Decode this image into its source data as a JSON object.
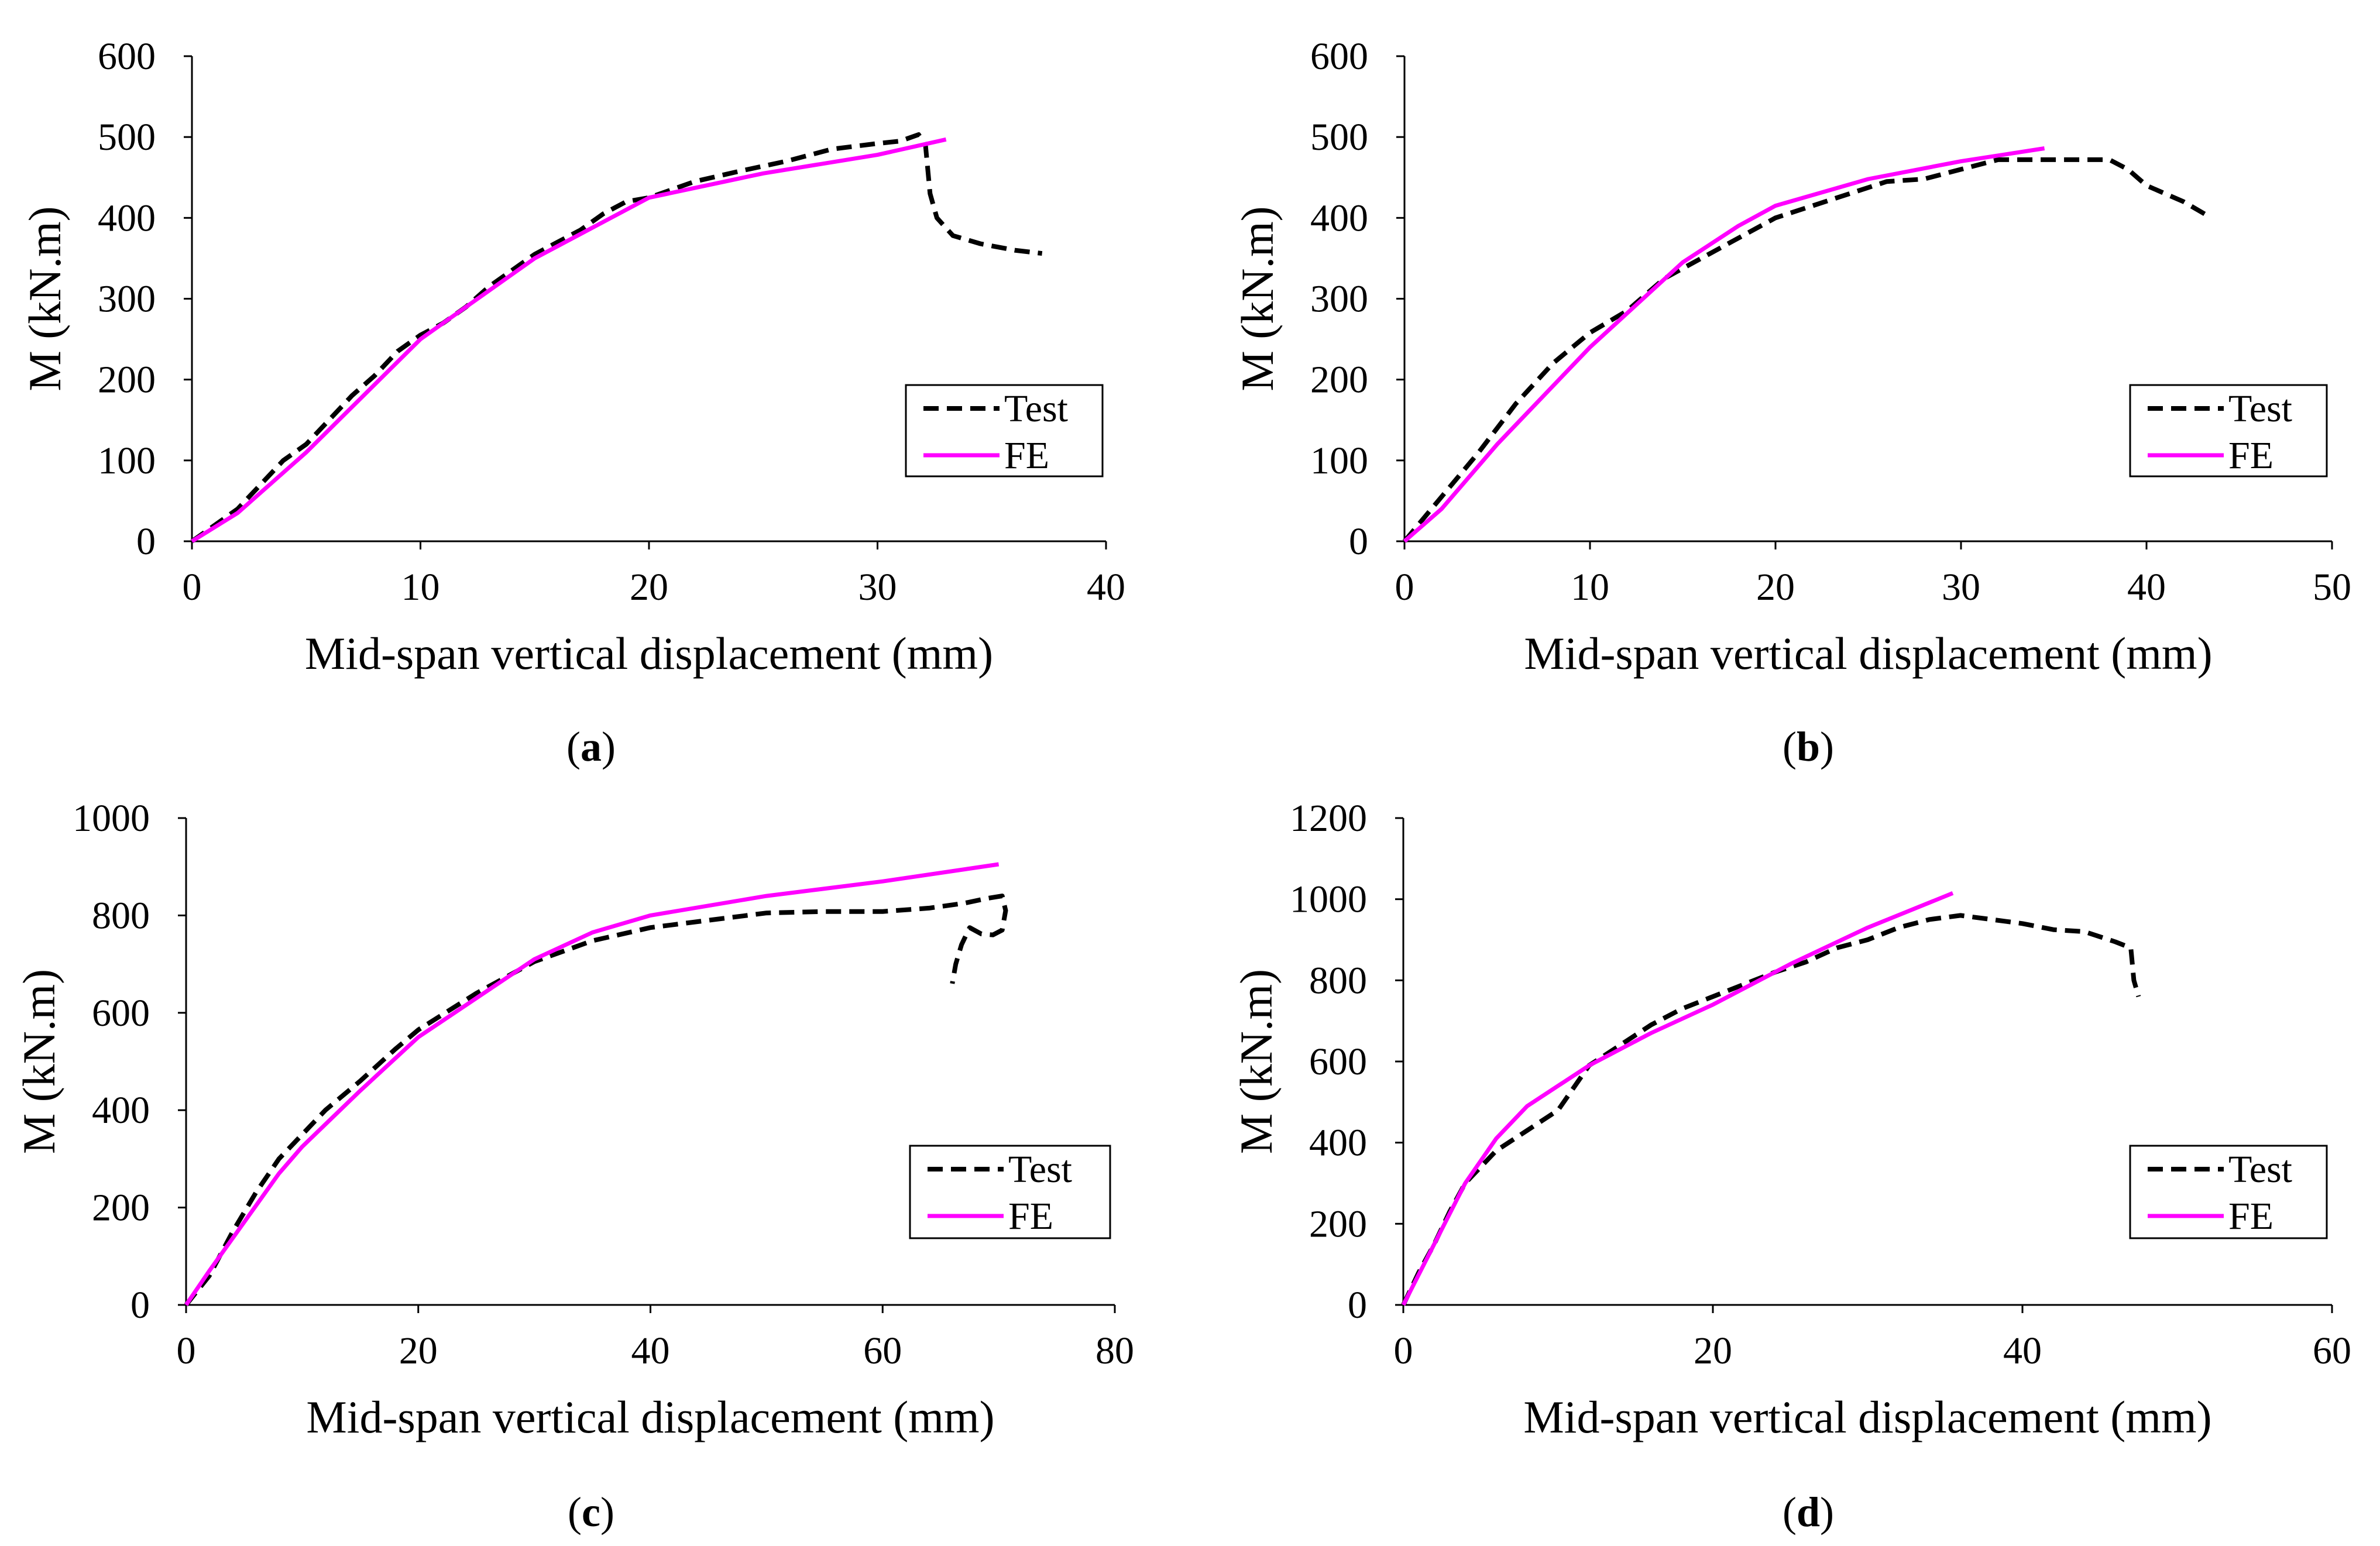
{
  "figure": {
    "panels": [
      "a",
      "b",
      "c",
      "d"
    ]
  },
  "chart_data": [
    {
      "id": "a",
      "type": "line",
      "caption_letter": "a",
      "xlabel": "Mid-span vertical displacement (mm)",
      "ylabel": "M (kN.m)",
      "xlim": [
        0,
        40
      ],
      "ylim": [
        0,
        600
      ],
      "xticks": [
        0,
        10,
        20,
        30,
        40
      ],
      "yticks": [
        0,
        100,
        200,
        300,
        400,
        500,
        600
      ],
      "grid": false,
      "legend_position": "lower-right",
      "series": [
        {
          "name": "Test",
          "style": "dashed",
          "color": "#000000",
          "points": [
            [
              0,
              0
            ],
            [
              1,
              20
            ],
            [
              2,
              40
            ],
            [
              3,
              70
            ],
            [
              4,
              100
            ],
            [
              5,
              120
            ],
            [
              6,
              150
            ],
            [
              7,
              180
            ],
            [
              8,
              205
            ],
            [
              9,
              235
            ],
            [
              10,
              255
            ],
            [
              11,
              270
            ],
            [
              12,
              290
            ],
            [
              13,
              315
            ],
            [
              14,
              335
            ],
            [
              15,
              355
            ],
            [
              16,
              370
            ],
            [
              17,
              385
            ],
            [
              18,
              405
            ],
            [
              19,
              420
            ],
            [
              20,
              425
            ],
            [
              21,
              435
            ],
            [
              22,
              445
            ],
            [
              24,
              458
            ],
            [
              26,
              470
            ],
            [
              28,
              485
            ],
            [
              30,
              492
            ],
            [
              31,
              495
            ],
            [
              31.8,
              503
            ],
            [
              32.1,
              490
            ],
            [
              32.3,
              430
            ],
            [
              32.6,
              400
            ],
            [
              33.3,
              378
            ],
            [
              34.5,
              368
            ],
            [
              36,
              360
            ],
            [
              37.2,
              356
            ]
          ]
        },
        {
          "name": "FE",
          "style": "solid",
          "color": "#ff00ff",
          "points": [
            [
              0,
              0
            ],
            [
              2,
              35
            ],
            [
              5,
              110
            ],
            [
              10,
              250
            ],
            [
              15,
              350
            ],
            [
              20,
              425
            ],
            [
              25,
              455
            ],
            [
              30,
              478
            ],
            [
              33,
              497
            ]
          ]
        }
      ]
    },
    {
      "id": "b",
      "type": "line",
      "caption_letter": "b",
      "xlabel": "Mid-span vertical displacement (mm)",
      "ylabel": "M (kN.m)",
      "xlim": [
        0,
        50
      ],
      "ylim": [
        0,
        600
      ],
      "xticks": [
        0,
        10,
        20,
        30,
        40,
        50
      ],
      "yticks": [
        0,
        100,
        200,
        300,
        400,
        500,
        600
      ],
      "grid": false,
      "legend_position": "lower-right",
      "series": [
        {
          "name": "Test",
          "style": "dashed",
          "color": "#000000",
          "points": [
            [
              0,
              0
            ],
            [
              2,
              55
            ],
            [
              4,
              110
            ],
            [
              6,
              170
            ],
            [
              8,
              220
            ],
            [
              10,
              258
            ],
            [
              12,
              285
            ],
            [
              14,
              325
            ],
            [
              16,
              350
            ],
            [
              18,
              375
            ],
            [
              20,
              400
            ],
            [
              22,
              415
            ],
            [
              24,
              430
            ],
            [
              26,
              445
            ],
            [
              28,
              448
            ],
            [
              30,
              460
            ],
            [
              32,
              472
            ],
            [
              34,
              472
            ],
            [
              36,
              472
            ],
            [
              38,
              472
            ],
            [
              39,
              460
            ],
            [
              40,
              440
            ],
            [
              42,
              420
            ],
            [
              43.5,
              400
            ]
          ]
        },
        {
          "name": "FE",
          "style": "solid",
          "color": "#ff00ff",
          "points": [
            [
              0,
              0
            ],
            [
              2,
              40
            ],
            [
              5,
              120
            ],
            [
              10,
              240
            ],
            [
              15,
              345
            ],
            [
              18,
              390
            ],
            [
              20,
              415
            ],
            [
              25,
              448
            ],
            [
              30,
              470
            ],
            [
              34.5,
              486
            ]
          ]
        }
      ]
    },
    {
      "id": "c",
      "type": "line",
      "caption_letter": "c",
      "xlabel": "Mid-span vertical displacement (mm)",
      "ylabel": "M (kN.m)",
      "xlim": [
        0,
        80
      ],
      "ylim": [
        0,
        1000
      ],
      "xticks": [
        0,
        20,
        40,
        60,
        80
      ],
      "yticks": [
        0,
        200,
        400,
        600,
        800,
        1000
      ],
      "grid": false,
      "legend_position": "lower-right",
      "series": [
        {
          "name": "Test",
          "style": "dashed",
          "color": "#000000",
          "points": [
            [
              0,
              0
            ],
            [
              2,
              60
            ],
            [
              4,
              150
            ],
            [
              6,
              230
            ],
            [
              8,
              300
            ],
            [
              10,
              350
            ],
            [
              12,
              400
            ],
            [
              15,
              460
            ],
            [
              18,
              525
            ],
            [
              20,
              565
            ],
            [
              25,
              640
            ],
            [
              30,
              705
            ],
            [
              35,
              748
            ],
            [
              40,
              775
            ],
            [
              45,
              790
            ],
            [
              50,
              805
            ],
            [
              55,
              808
            ],
            [
              60,
              808
            ],
            [
              64,
              815
            ],
            [
              67,
              825
            ],
            [
              69,
              835
            ],
            [
              70.3,
              840
            ],
            [
              70.6,
              810
            ],
            [
              70.3,
              770
            ],
            [
              69.5,
              760
            ],
            [
              68.5,
              762
            ],
            [
              67.5,
              775
            ],
            [
              66.8,
              740
            ],
            [
              66.3,
              700
            ],
            [
              66,
              660
            ]
          ]
        },
        {
          "name": "FE",
          "style": "solid",
          "color": "#ff00ff",
          "points": [
            [
              0,
              0
            ],
            [
              2,
              70
            ],
            [
              5,
              170
            ],
            [
              8,
              270
            ],
            [
              10,
              325
            ],
            [
              15,
              440
            ],
            [
              20,
              550
            ],
            [
              25,
              630
            ],
            [
              30,
              710
            ],
            [
              35,
              765
            ],
            [
              40,
              800
            ],
            [
              50,
              840
            ],
            [
              60,
              870
            ],
            [
              70,
              905
            ]
          ]
        }
      ]
    },
    {
      "id": "d",
      "type": "line",
      "caption_letter": "d",
      "xlabel": "Mid-span vertical displacement (mm)",
      "ylabel": "M (kN.m)",
      "xlim": [
        0,
        60
      ],
      "ylim": [
        0,
        1200
      ],
      "xticks": [
        0,
        20,
        40,
        60
      ],
      "yticks": [
        0,
        200,
        400,
        600,
        800,
        1000,
        1200
      ],
      "grid": false,
      "legend_position": "lower-right",
      "series": [
        {
          "name": "Test",
          "style": "dashed",
          "color": "#000000",
          "points": [
            [
              0,
              0
            ],
            [
              1,
              80
            ],
            [
              2,
              150
            ],
            [
              3,
              230
            ],
            [
              4,
              300
            ],
            [
              5,
              340
            ],
            [
              6,
              380
            ],
            [
              8,
              430
            ],
            [
              10,
              480
            ],
            [
              12,
              590
            ],
            [
              14,
              640
            ],
            [
              16,
              690
            ],
            [
              18,
              730
            ],
            [
              20,
              760
            ],
            [
              22,
              790
            ],
            [
              24,
              820
            ],
            [
              26,
              845
            ],
            [
              28,
              880
            ],
            [
              30,
              900
            ],
            [
              32,
              930
            ],
            [
              34,
              950
            ],
            [
              36,
              960
            ],
            [
              38,
              950
            ],
            [
              40,
              940
            ],
            [
              42,
              925
            ],
            [
              44,
              920
            ],
            [
              46,
              895
            ],
            [
              47,
              880
            ],
            [
              47.2,
              800
            ],
            [
              47.5,
              760
            ]
          ]
        },
        {
          "name": "FE",
          "style": "solid",
          "color": "#ff00ff",
          "points": [
            [
              0,
              0
            ],
            [
              2,
              150
            ],
            [
              4,
              300
            ],
            [
              6,
              410
            ],
            [
              8,
              490
            ],
            [
              10,
              540
            ],
            [
              12,
              590
            ],
            [
              16,
              670
            ],
            [
              20,
              740
            ],
            [
              25,
              840
            ],
            [
              30,
              930
            ],
            [
              35.5,
              1015
            ]
          ]
        }
      ]
    }
  ]
}
